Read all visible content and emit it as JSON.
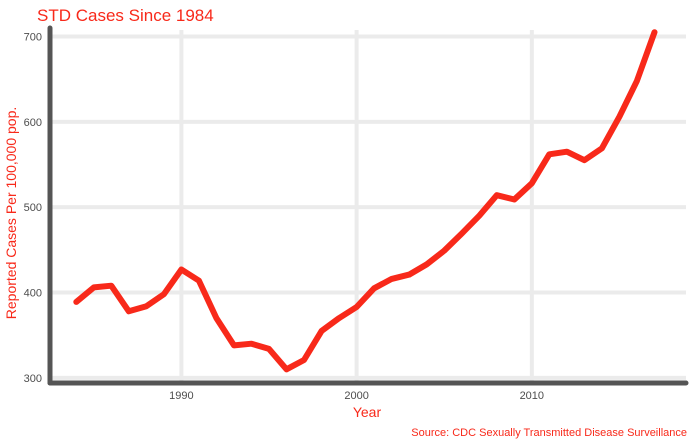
{
  "colors": {
    "accent": "#f8291a",
    "grid": "#ebebeb",
    "axis": "#555555",
    "tick_text": "#4d4d4d"
  },
  "chart_data": {
    "type": "line",
    "title": "STD Cases Since 1984",
    "xlabel": "Year",
    "ylabel": "Reported Cases Per 100,000 pop.",
    "caption": "Source: CDC Sexually Transmitted Disease Surveillance",
    "xlim": [
      1982.5,
      2018.8
    ],
    "ylim": [
      294,
      724
    ],
    "xticks": [
      1990,
      2000,
      2010
    ],
    "yticks": [
      300,
      400,
      500,
      600,
      700
    ],
    "grid": true,
    "legend": "none",
    "series": [
      {
        "x": [
          1984,
          1985,
          1986,
          1987,
          1988,
          1989,
          1990,
          1991,
          1992,
          1993,
          1994,
          1995,
          1996,
          1997,
          1998,
          1999,
          2000,
          2001,
          2002,
          2003,
          2004,
          2005,
          2006,
          2007,
          2008,
          2009,
          2010,
          2011,
          2012,
          2013,
          2014,
          2015,
          2016,
          2017
        ],
        "values": [
          389,
          406,
          408,
          378,
          384,
          398,
          427,
          414,
          370,
          338,
          340,
          334,
          310,
          321,
          355,
          370,
          383,
          405,
          416,
          421,
          433,
          449,
          469,
          490,
          514,
          509,
          528,
          562,
          565,
          555,
          569,
          606,
          648,
          705
        ]
      }
    ]
  }
}
